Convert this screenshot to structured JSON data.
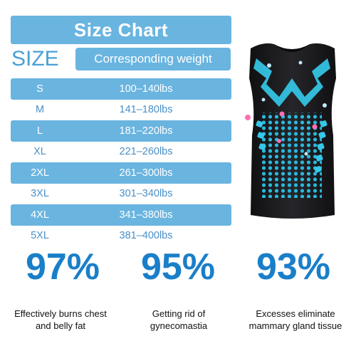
{
  "title": "Size Chart",
  "size_header": "SIZE",
  "weight_header": "Corresponding weight",
  "rows": [
    {
      "size": "S",
      "weight": "100–140lbs"
    },
    {
      "size": "M",
      "weight": "141–180lbs"
    },
    {
      "size": "L",
      "weight": "181–220lbs"
    },
    {
      "size": "XL",
      "weight": "221–260lbs"
    },
    {
      "size": "2XL",
      "weight": "261–300lbs"
    },
    {
      "size": "3XL",
      "weight": "301–340lbs"
    },
    {
      "size": "4XL",
      "weight": "341–380lbs"
    },
    {
      "size": "5XL",
      "weight": "381–400lbs"
    }
  ],
  "stats": [
    {
      "value": "97%",
      "desc_line1": "Effectively burns chest",
      "desc_line2": "and belly fat"
    },
    {
      "value": "95%",
      "desc_line1": "Getting rid of",
      "desc_line2": "gynecomastia"
    },
    {
      "value": "93%",
      "desc_line1": "Excesses eliminate",
      "desc_line2": "mammary gland tissue"
    }
  ],
  "colors": {
    "accent": "#6ab4e0",
    "stat_blue": "#1a7fc9",
    "vest_black": "#1c1c1e",
    "vest_cyan": "#35c8e8",
    "sparkle_pink": "#ff6fb5"
  },
  "product_image": "compression-vest-icon"
}
